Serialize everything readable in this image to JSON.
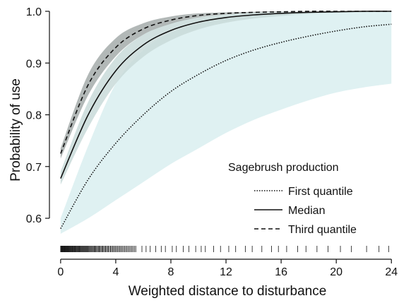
{
  "chart_data": {
    "type": "line",
    "title": "",
    "xlabel": "Weighted distance to disturbance",
    "ylabel": "Probability of use",
    "xlim": [
      -0.3,
      24.5
    ],
    "ylim": [
      0.555,
      1.0
    ],
    "x_ticks": [
      "0",
      "4",
      "8",
      "12",
      "16",
      "20",
      "24"
    ],
    "y_ticks": [
      "0.6",
      "0.7",
      "0.8",
      "0.9",
      "1.0"
    ],
    "grid": false,
    "legend": {
      "title": "Sagebrush production",
      "position": "bottom-right",
      "entries": [
        "First quantile",
        "Median",
        "Third quantile"
      ]
    },
    "series": [
      {
        "name": "First quantile",
        "style": "dotted",
        "color": "#111111",
        "band_color": "#d9eef0",
        "x": [
          0,
          2,
          4,
          6,
          8,
          10,
          12,
          14,
          16,
          18,
          20,
          22,
          24
        ],
        "y": [
          0.58,
          0.675,
          0.745,
          0.8,
          0.845,
          0.878,
          0.905,
          0.925,
          0.94,
          0.952,
          0.962,
          0.97,
          0.975
        ],
        "lower": [
          0.57,
          0.6,
          0.635,
          0.67,
          0.705,
          0.735,
          0.765,
          0.79,
          0.81,
          0.828,
          0.843,
          0.853,
          0.86
        ],
        "upper": [
          0.6,
          0.74,
          0.86,
          0.925,
          0.958,
          0.976,
          0.986,
          0.992,
          0.995,
          0.997,
          0.998,
          0.999,
          1.0
        ]
      },
      {
        "name": "Median",
        "style": "solid",
        "color": "#111111",
        "band_color": "#c9dad9",
        "x": [
          0,
          2,
          4,
          6,
          8,
          10,
          12,
          14,
          16,
          18,
          20,
          22,
          24
        ],
        "y": [
          0.677,
          0.8,
          0.885,
          0.935,
          0.963,
          0.979,
          0.988,
          0.993,
          0.996,
          0.998,
          0.999,
          1.0,
          1.0
        ],
        "lower": [
          0.665,
          0.775,
          0.86,
          0.912,
          0.944,
          0.965,
          0.978,
          0.986,
          0.991,
          0.995,
          0.997,
          0.998,
          0.999
        ],
        "upper": [
          0.69,
          0.825,
          0.91,
          0.955,
          0.977,
          0.988,
          0.994,
          0.997,
          0.998,
          0.999,
          1.0,
          1.0,
          1.0
        ]
      },
      {
        "name": "Third quantile",
        "style": "dashed",
        "color": "#111111",
        "band_color": "#a4abaa",
        "x": [
          0,
          2,
          4,
          6,
          8,
          10,
          12,
          14,
          16,
          18,
          20,
          22,
          24
        ],
        "y": [
          0.725,
          0.858,
          0.93,
          0.966,
          0.983,
          0.992,
          0.996,
          0.998,
          0.999,
          1.0,
          1.0,
          1.0,
          1.0
        ],
        "lower": [
          0.715,
          0.838,
          0.913,
          0.955,
          0.976,
          0.988,
          0.994,
          0.997,
          0.999,
          1.0,
          1.0,
          1.0,
          1.0
        ],
        "upper": [
          0.735,
          0.878,
          0.948,
          0.977,
          0.99,
          0.996,
          0.998,
          0.999,
          1.0,
          1.0,
          1.0,
          1.0,
          1.0
        ]
      }
    ],
    "rug": {
      "description_color": "#111111",
      "dense_until": 5.5,
      "sparse_x": [
        5.9,
        6.2,
        6.5,
        6.9,
        7.3,
        7.6,
        8.1,
        8.4,
        8.9,
        9.3,
        9.8,
        10.2,
        10.5,
        11.1,
        11.6,
        12.2,
        12.7,
        13.4,
        13.9,
        14.6,
        15.3,
        15.8,
        16.4,
        17.2,
        17.8,
        18.6,
        19.4,
        20.3,
        21.1,
        22.2,
        23.1,
        23.8
      ]
    }
  }
}
